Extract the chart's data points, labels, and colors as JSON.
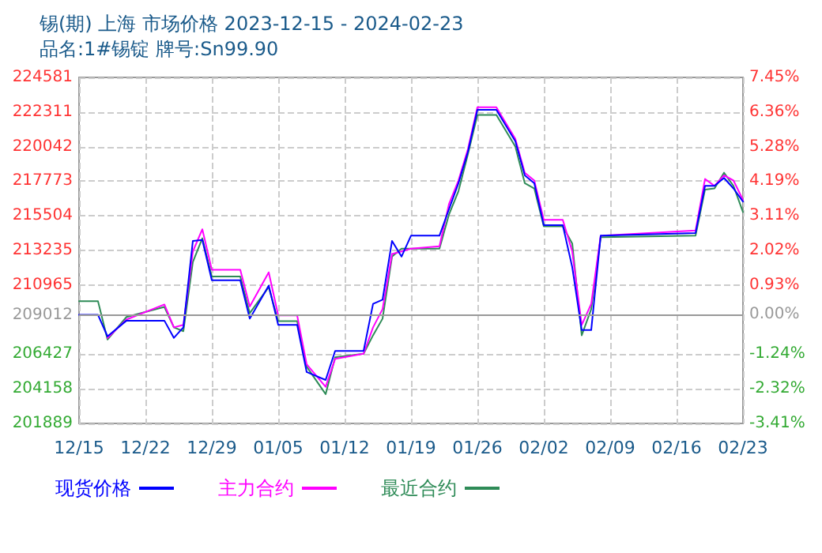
{
  "chart_data": {
    "type": "line",
    "title": "锡(期) 上海 市场价格 2023-12-15 - 2024-02-23",
    "subtitle": "品名:1#锡锭 牌号:Sn99.90",
    "x": [
      "2023-12-15",
      "2023-12-17",
      "2023-12-18",
      "2023-12-20",
      "2023-12-24",
      "2023-12-25",
      "2023-12-26",
      "2023-12-27",
      "2023-12-28",
      "2023-12-29",
      "2024-01-01",
      "2024-01-02",
      "2024-01-04",
      "2024-01-05",
      "2024-01-07",
      "2024-01-08",
      "2024-01-10",
      "2024-01-11",
      "2024-01-14",
      "2024-01-15",
      "2024-01-16",
      "2024-01-17",
      "2024-01-18",
      "2024-01-19",
      "2024-01-22",
      "2024-01-23",
      "2024-01-24",
      "2024-01-25",
      "2024-01-26",
      "2024-01-28",
      "2024-01-30",
      "2024-01-31",
      "2024-02-01",
      "2024-02-02",
      "2024-02-04",
      "2024-02-05",
      "2024-02-06",
      "2024-02-07",
      "2024-02-08",
      "2024-02-18",
      "2024-02-19",
      "2024-02-20",
      "2024-02-21",
      "2024-02-22",
      "2024-02-23"
    ],
    "series": [
      {
        "name": "现货价格",
        "color": "#0000ff",
        "values": [
          209010,
          209010,
          207600,
          208630,
          208630,
          207500,
          208190,
          213860,
          213920,
          211280,
          211280,
          208760,
          210930,
          208350,
          208350,
          205260,
          204740,
          206640,
          206640,
          209730,
          210000,
          213860,
          212830,
          214200,
          214200,
          215930,
          217640,
          219700,
          222460,
          222460,
          220400,
          218160,
          217640,
          214890,
          214890,
          212140,
          208010,
          208010,
          214200,
          214380,
          217470,
          217470,
          217990,
          217300,
          216440
        ]
      },
      {
        "name": "主力合约",
        "color": "#ff00ff",
        "values": [
          null,
          null,
          207500,
          208700,
          209690,
          208190,
          208350,
          213170,
          214620,
          211960,
          211960,
          209560,
          211800,
          208970,
          208970,
          205770,
          204290,
          206120,
          206460,
          208190,
          209380,
          213000,
          213170,
          213350,
          213510,
          216270,
          217820,
          219880,
          222630,
          222630,
          220550,
          218330,
          217820,
          215240,
          215240,
          213170,
          208350,
          209730,
          214200,
          214540,
          217920,
          217470,
          218160,
          217820,
          216550
        ]
      },
      {
        "name": "最近合约",
        "color": "#2e8b57",
        "values": [
          209900,
          209900,
          207390,
          208870,
          209530,
          208190,
          207940,
          212480,
          214030,
          211520,
          211520,
          209120,
          210830,
          208600,
          208600,
          205610,
          203810,
          206230,
          206460,
          207670,
          208760,
          212830,
          213350,
          213350,
          213350,
          215580,
          217120,
          219540,
          222120,
          222120,
          220050,
          217640,
          217300,
          214820,
          214820,
          213690,
          207670,
          209380,
          214100,
          214200,
          217230,
          217300,
          218330,
          217470,
          215750
        ]
      }
    ],
    "xlim": [
      "2023-12-15",
      "2024-02-23"
    ],
    "xticks": [
      {
        "value": "2023-12-15",
        "label": "12/15"
      },
      {
        "value": "2023-12-22",
        "label": "12/22"
      },
      {
        "value": "2023-12-29",
        "label": "12/29"
      },
      {
        "value": "2024-01-05",
        "label": "01/05"
      },
      {
        "value": "2024-01-12",
        "label": "01/12"
      },
      {
        "value": "2024-01-19",
        "label": "01/19"
      },
      {
        "value": "2024-01-26",
        "label": "01/26"
      },
      {
        "value": "2024-02-02",
        "label": "02/02"
      },
      {
        "value": "2024-02-09",
        "label": "02/09"
      },
      {
        "value": "2024-02-16",
        "label": "02/16"
      },
      {
        "value": "2024-02-23",
        "label": "02/23"
      }
    ],
    "ylim": [
      201889,
      224581
    ],
    "yticks": [
      201889,
      204158,
      206427,
      209012,
      210965,
      213235,
      215504,
      217773,
      220042,
      222311,
      224581
    ],
    "y2lim": [
      -3.41,
      7.45
    ],
    "y2ticks": [
      {
        "value": -3.41,
        "label": "-3.41%"
      },
      {
        "value": -2.32,
        "label": "-2.32%"
      },
      {
        "value": -1.24,
        "label": "-1.24%"
      },
      {
        "value": 0,
        "label": "0.00%"
      },
      {
        "value": 0.93,
        "label": "0.93%"
      },
      {
        "value": 2.02,
        "label": "2.02%"
      },
      {
        "value": 3.11,
        "label": "3.11%"
      },
      {
        "value": 4.19,
        "label": "4.19%"
      },
      {
        "value": 5.28,
        "label": "5.28%"
      },
      {
        "value": 6.36,
        "label": "6.36%"
      },
      {
        "value": 7.45,
        "label": "7.45%"
      }
    ],
    "ref_lines": [
      {
        "axis": "y",
        "value": 209012,
        "color": "#999999"
      }
    ],
    "grid": true,
    "legend": "bottom",
    "marker": "none",
    "line_style": "solid"
  }
}
